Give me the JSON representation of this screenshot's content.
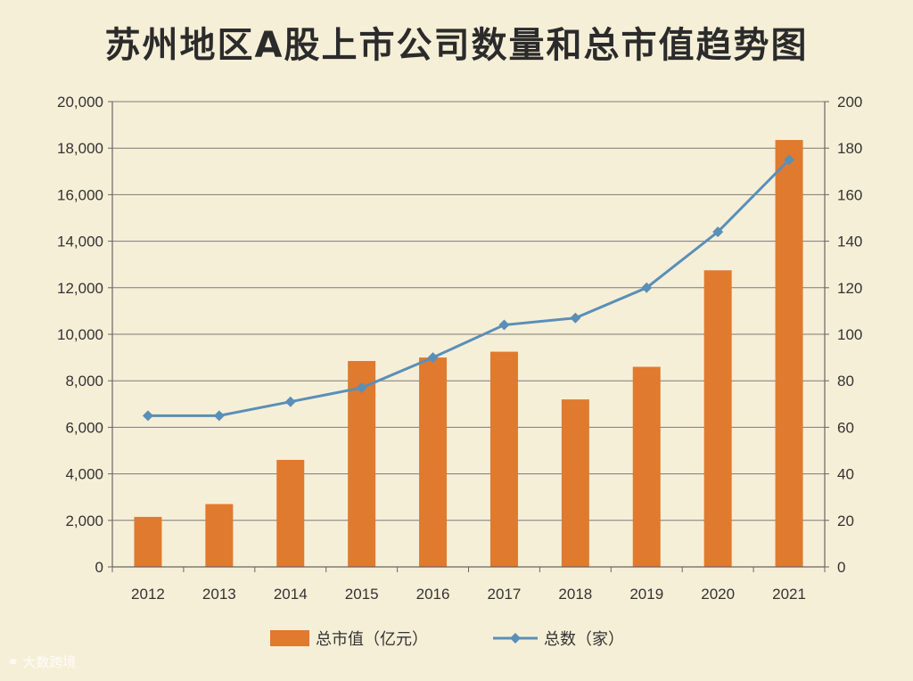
{
  "title": "苏州地区A股上市公司数量和总市值趋势图",
  "watermark": {
    "icon": "logo-icon",
    "text": "大数跨境"
  },
  "colors": {
    "bar": "#e07a2e",
    "line": "#5a8fb8",
    "grid": "#7a7a7a",
    "axis": "#666666"
  },
  "chart_data": {
    "type": "bar+line",
    "title": "苏州地区A股上市公司数量和总市值趋势图",
    "categories": [
      "2012",
      "2013",
      "2014",
      "2015",
      "2016",
      "2017",
      "2018",
      "2019",
      "2020",
      "2021"
    ],
    "series": [
      {
        "name": "总市值（亿元）",
        "type": "bar",
        "axis": "left",
        "values": [
          2150,
          2700,
          4600,
          8850,
          9000,
          9250,
          7200,
          8600,
          12750,
          18350
        ]
      },
      {
        "name": "总数（家）",
        "type": "line",
        "axis": "right",
        "values": [
          65,
          65,
          71,
          77,
          90,
          104,
          107,
          120,
          144,
          175
        ]
      }
    ],
    "y_left": {
      "lim": [
        0,
        20000
      ],
      "ticks": [
        "0",
        "2,000",
        "4,000",
        "6,000",
        "8,000",
        "10,000",
        "12,000",
        "14,000",
        "16,000",
        "18,000",
        "20,000"
      ]
    },
    "y_right": {
      "lim": [
        0,
        200
      ],
      "ticks": [
        "0",
        "20",
        "40",
        "60",
        "80",
        "100",
        "120",
        "140",
        "160",
        "180",
        "200"
      ]
    },
    "grid": true,
    "legend": "bottom"
  }
}
